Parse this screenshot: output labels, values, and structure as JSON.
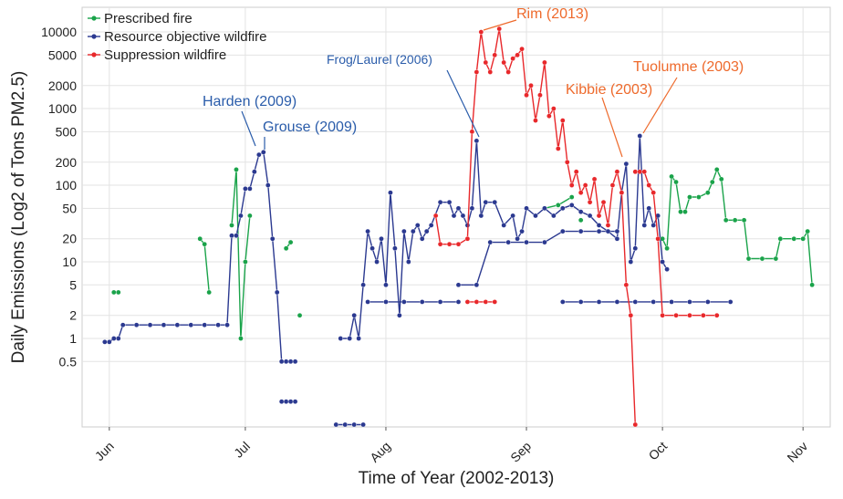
{
  "chart_data": {
    "type": "line",
    "x_label": "Time of Year (2002-2013)",
    "y_label": "Daily Emissions (Log2 of Tons PM2.5)",
    "yscale": "log",
    "grid": true,
    "legend_position": "top-left",
    "xlim": [
      146,
      311
    ],
    "xticks": [
      {
        "value": 152,
        "label": "Jun"
      },
      {
        "value": 182,
        "label": "Jul"
      },
      {
        "value": 213,
        "label": "Aug"
      },
      {
        "value": 244,
        "label": "Sep"
      },
      {
        "value": 274,
        "label": "Oct"
      },
      {
        "value": 305,
        "label": "Nov"
      }
    ],
    "ylim": [
      0.07,
      21000
    ],
    "yticks": [
      0.5,
      1,
      2,
      5,
      10,
      20,
      50,
      100,
      200,
      500,
      1000,
      2000,
      5000,
      10000
    ],
    "annotations": [
      {
        "text": "Harden (2009)",
        "color": "#2a5caa"
      },
      {
        "text": "Grouse (2009)",
        "color": "#2a5caa"
      },
      {
        "text": "Frog/Laurel (2006)",
        "color": "#2a5caa"
      },
      {
        "text": "Rim (2013)",
        "color": "#ee6a2c"
      },
      {
        "text": "Kibbie (2003)",
        "color": "#ee6a2c"
      },
      {
        "text": "Tuolumne (2003)",
        "color": "#ee6a2c"
      }
    ],
    "series": [
      {
        "name": "Prescribed fire",
        "color": "#1aa34a",
        "x": [
          153,
          154,
          null,
          172,
          173,
          174,
          null,
          179,
          180,
          181,
          182,
          183,
          null,
          191,
          192,
          null,
          194,
          null,
          248,
          251,
          254,
          null,
          256,
          null,
          274,
          275,
          276,
          277,
          278,
          279,
          280,
          282,
          284,
          285,
          286,
          287,
          288,
          290,
          292,
          293,
          296,
          299,
          300,
          303,
          305,
          306,
          307
        ],
        "values": [
          4,
          4,
          null,
          20,
          17,
          4,
          null,
          30,
          160,
          1,
          10,
          40,
          null,
          15,
          18,
          null,
          2,
          null,
          50,
          55,
          70,
          null,
          35,
          null,
          20,
          15,
          130,
          110,
          45,
          45,
          70,
          70,
          80,
          110,
          160,
          120,
          35,
          35,
          35,
          11,
          11,
          11,
          20,
          20,
          20,
          25,
          5
        ]
      },
      {
        "name": "Resource objective wildfire",
        "color": "#2b3990",
        "x": [
          151,
          152,
          153,
          154,
          155,
          158,
          161,
          164,
          167,
          170,
          173,
          176,
          178,
          179,
          180,
          181,
          182,
          183,
          184,
          185,
          186,
          187,
          188,
          189,
          190,
          191,
          192,
          193,
          null,
          190,
          191,
          192,
          193,
          null,
          202,
          204,
          206,
          208,
          null,
          203,
          205,
          206,
          207,
          208,
          209,
          210,
          211,
          212,
          213,
          214,
          215,
          216,
          217,
          218,
          219,
          220,
          221,
          222,
          223,
          225,
          227,
          228,
          229,
          230,
          231,
          232,
          233,
          234,
          235,
          237,
          239,
          241,
          242,
          243,
          244,
          246,
          248,
          250,
          252,
          254,
          256,
          258,
          260,
          262,
          264,
          265,
          266,
          267,
          268,
          269,
          270,
          271,
          272,
          273,
          274,
          275,
          null,
          209,
          213,
          217,
          221,
          225,
          229,
          null,
          229,
          233,
          236,
          240,
          244,
          248,
          252,
          256,
          260,
          264,
          null,
          252,
          256,
          260,
          264,
          268,
          272,
          276,
          280,
          284,
          289
        ],
        "values": [
          0.9,
          0.9,
          1,
          1,
          1.5,
          1.5,
          1.5,
          1.5,
          1.5,
          1.5,
          1.5,
          1.5,
          1.5,
          22,
          22,
          40,
          90,
          90,
          150,
          250,
          270,
          100,
          20,
          4,
          0.5,
          0.5,
          0.5,
          0.5,
          null,
          0.15,
          0.15,
          0.15,
          0.15,
          null,
          0.075,
          0.075,
          0.075,
          0.075,
          null,
          1,
          1,
          2,
          1,
          5,
          25,
          15,
          10,
          20,
          5,
          80,
          15,
          2,
          25,
          10,
          25,
          30,
          20,
          25,
          30,
          60,
          60,
          40,
          50,
          40,
          30,
          50,
          380,
          40,
          60,
          60,
          30,
          40,
          20,
          25,
          50,
          40,
          50,
          40,
          50,
          55,
          45,
          40,
          30,
          25,
          20,
          80,
          190,
          10,
          15,
          440,
          30,
          50,
          30,
          40,
          10,
          8,
          null,
          3,
          3,
          3,
          3,
          3,
          3,
          null,
          5,
          5,
          18,
          18,
          18,
          18,
          25,
          25,
          25,
          25,
          null,
          3,
          3,
          3,
          3,
          3,
          3,
          3,
          3,
          3,
          3
        ]
      },
      {
        "name": "Suppression wildfire",
        "color": "#e8282b",
        "x": [
          224,
          225,
          227,
          229,
          231,
          232,
          233,
          234,
          235,
          236,
          237,
          238,
          239,
          240,
          241,
          242,
          243,
          244,
          245,
          246,
          247,
          248,
          249,
          250,
          251,
          252,
          253,
          254,
          255,
          256,
          257,
          258,
          259,
          260,
          261,
          262,
          263,
          264,
          265,
          266,
          267,
          268,
          null,
          231,
          233,
          235,
          237,
          null,
          268,
          269,
          270,
          271,
          272,
          273,
          274,
          277,
          280,
          283,
          286
        ],
        "values": [
          40,
          17,
          17,
          17,
          20,
          500,
          3000,
          10000,
          4000,
          3000,
          5000,
          11000,
          4000,
          3000,
          4500,
          5000,
          6000,
          1500,
          2000,
          700,
          1500,
          4000,
          800,
          1000,
          300,
          700,
          200,
          100,
          150,
          80,
          100,
          60,
          120,
          40,
          60,
          30,
          100,
          150,
          80,
          5,
          2,
          0.075,
          null,
          3,
          3,
          3,
          3,
          null,
          150,
          150,
          150,
          100,
          80,
          20,
          2,
          2,
          2,
          2,
          2
        ]
      }
    ]
  }
}
